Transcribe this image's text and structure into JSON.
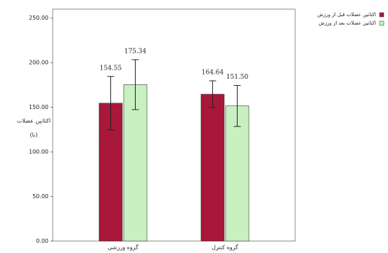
{
  "chart_data": {
    "type": "bar",
    "y_label": [
      "اکتاتین عضلات",
      "(نا)"
    ],
    "categories": [
      "گروه ورزشی",
      "گروه کنترل"
    ],
    "series": [
      {
        "name": "اکتاتین عضلات قبل از ورزش",
        "color": "#a8183a",
        "values": [
          154.55,
          164.64
        ],
        "value_labels": [
          "154.55",
          "164.64"
        ],
        "errors": [
          30,
          15
        ]
      },
      {
        "name": "اکتاتین عضلات بعد از ورزش",
        "color": "#c8f0c0",
        "values": [
          175.34,
          151.5
        ],
        "value_labels": [
          "175.34",
          "151.50"
        ],
        "errors": [
          28,
          23
        ]
      }
    ],
    "ylim": [
      0,
      260
    ],
    "yticks": [
      {
        "value": 0,
        "label": "0.00"
      },
      {
        "value": 50,
        "label": "50.00"
      },
      {
        "value": 100,
        "label": "100.00"
      },
      {
        "value": 150,
        "label": "150.00"
      },
      {
        "value": 200,
        "label": "200.00"
      },
      {
        "value": 250,
        "label": "250.00"
      }
    ]
  }
}
